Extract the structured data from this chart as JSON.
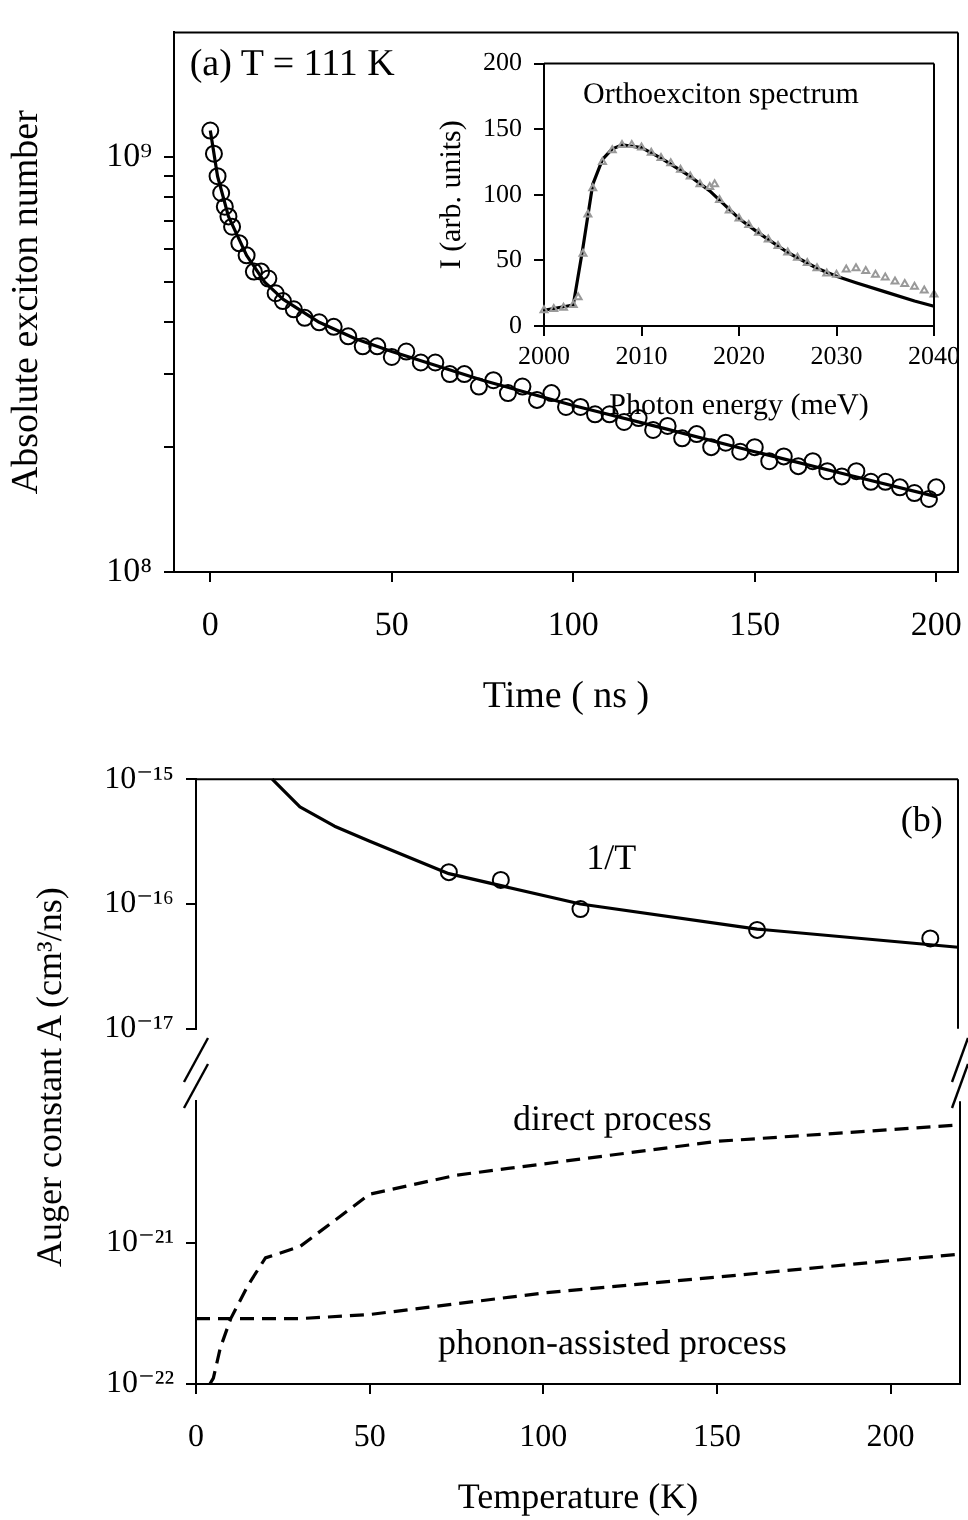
{
  "chart_data": [
    {
      "type": "scatter",
      "xlabel": "Time ( ns )",
      "ylabel": "Absolute exciton number",
      "log": "y",
      "xlim": [
        -10,
        206
      ],
      "xticks": [
        0,
        50,
        100,
        150,
        200
      ],
      "ylim": [
        100000000.0,
        2000000000.0
      ],
      "yticks": [
        {
          "value": 100000000.0,
          "label": "10⁸"
        },
        {
          "value": 200000000.0,
          "label": null
        },
        {
          "value": 300000000.0,
          "label": null
        },
        {
          "value": 400000000.0,
          "label": null
        },
        {
          "value": 500000000.0,
          "label": null
        },
        {
          "value": 600000000.0,
          "label": null
        },
        {
          "value": 700000000.0,
          "label": null
        },
        {
          "value": 800000000.0,
          "label": null
        },
        {
          "value": 900000000.0,
          "label": null
        },
        {
          "value": 1000000000.0,
          "label": "10⁹"
        }
      ],
      "annotations": [
        "(a) T = 111 K"
      ],
      "series": [
        {
          "marker": "circle",
          "color": "#000000",
          "x": [
            0,
            1,
            2,
            3,
            4,
            5,
            6,
            8,
            10,
            12,
            14,
            16,
            18,
            20,
            23,
            26,
            30,
            34,
            38,
            42,
            46,
            50,
            54,
            58,
            62,
            66,
            70,
            74,
            78,
            82,
            86,
            90,
            94,
            98,
            102,
            106,
            110,
            114,
            118,
            122,
            126,
            130,
            134,
            138,
            142,
            146,
            150,
            154,
            158,
            162,
            166,
            170,
            174,
            178,
            182,
            186,
            190,
            194,
            198,
            200
          ],
          "values": [
            1160000000.0,
            1020000000.0,
            900000000.0,
            820000000.0,
            760000000.0,
            720000000.0,
            680000000.0,
            620000000.0,
            580000000.0,
            530000000.0,
            530000000.0,
            510000000.0,
            470000000.0,
            450000000.0,
            430000000.0,
            410000000.0,
            400000000.0,
            390000000.0,
            370000000.0,
            350000000.0,
            350000000.0,
            330000000.0,
            340000000.0,
            320000000.0,
            320000000.0,
            300000000.0,
            300000000.0,
            280000000.0,
            290000000.0,
            270000000.0,
            280000000.0,
            260000000.0,
            270000000.0,
            250000000.0,
            250000000.0,
            240000000.0,
            240000000.0,
            230000000.0,
            235000000.0,
            220000000.0,
            225000000.0,
            210000000.0,
            215000000.0,
            200000000.0,
            205000000.0,
            195000000.0,
            200000000.0,
            185000000.0,
            190000000.0,
            180000000.0,
            185000000.0,
            175000000.0,
            170000000.0,
            175000000.0,
            165000000.0,
            165000000.0,
            160000000.0,
            155000000.0,
            150000000.0,
            160000000.0
          ]
        },
        {
          "type": "line",
          "marker": "none",
          "line_style": "solid",
          "color": "#000000",
          "x": [
            0,
            2,
            5,
            10,
            15,
            20,
            30,
            40,
            50,
            75,
            100,
            125,
            150,
            175,
            200
          ],
          "values": [
            1160000000.0,
            900000000.0,
            720000000.0,
            580000000.0,
            500000000.0,
            455000000.0,
            400000000.0,
            365000000.0,
            340000000.0,
            290000000.0,
            252000000.0,
            222000000.0,
            195000000.0,
            172000000.0,
            152000000.0
          ]
        }
      ]
    },
    {
      "type": "scatter",
      "xlabel": "Photon energy (meV)",
      "ylabel": "I (arb. units)",
      "xlim": [
        2000,
        2040
      ],
      "xticks": [
        2000,
        2010,
        2020,
        2030,
        2040
      ],
      "ylim": [
        0,
        200
      ],
      "yticks": [
        0,
        50,
        100,
        150,
        200
      ],
      "annotations": [
        "Orthoexciton spectrum"
      ],
      "series": [
        {
          "marker": "triangle",
          "color": "#999999",
          "x": [
            2000,
            2001,
            2002,
            2003,
            2003.5,
            2004,
            2004.5,
            2005,
            2006,
            2007,
            2008,
            2009,
            2010,
            2011,
            2012,
            2013,
            2014,
            2015,
            2016,
            2017,
            2017.5,
            2018,
            2019,
            2020,
            2021,
            2022,
            2023,
            2024,
            2025,
            2026,
            2027,
            2028,
            2029,
            2030,
            2031,
            2032,
            2033,
            2034,
            2035,
            2036,
            2037,
            2038,
            2039,
            2040
          ],
          "values": [
            12,
            13,
            14,
            16,
            22,
            55,
            85,
            105,
            125,
            134,
            138,
            138,
            136,
            132,
            128,
            124,
            119,
            114,
            108,
            106,
            108,
            96,
            88,
            82,
            77,
            71,
            66,
            61,
            56,
            52,
            48,
            44,
            40,
            39,
            43,
            44,
            42,
            39,
            37,
            34,
            32,
            30,
            27,
            24
          ]
        },
        {
          "type": "line",
          "marker": "none",
          "line_style": "solid",
          "color": "#000000",
          "x": [
            2000,
            2003,
            2004,
            2005,
            2006,
            2007,
            2008,
            2010,
            2012,
            2015,
            2017,
            2018,
            2020,
            2022,
            2025,
            2028,
            2030,
            2032,
            2035,
            2038,
            2040
          ],
          "values": [
            12,
            16,
            60,
            108,
            127,
            135,
            138,
            136,
            128,
            114,
            103,
            96,
            82,
            71,
            56,
            44,
            38,
            33,
            26,
            19,
            15
          ]
        }
      ]
    },
    {
      "type": "scatter",
      "ylabel": "Auger constant  A (cm³/ns)",
      "log": "y",
      "tick_labels": "y",
      "xlim": [
        0,
        220
      ],
      "ylim": [
        1e-17,
        1e-15
      ],
      "yticks": [
        {
          "value": 1e-17,
          "label": "10⁻¹⁷"
        },
        {
          "value": 1e-16,
          "label": "10⁻¹⁶"
        },
        {
          "value": 1e-15,
          "label": "10⁻¹⁵"
        }
      ],
      "annotations": [
        "(b)",
        "1/T"
      ],
      "series": [
        {
          "marker": "circle",
          "color": "#000000",
          "x": [
            73,
            88,
            111,
            162,
            212
          ],
          "values": [
            1.8e-16,
            1.56e-16,
            9.1e-17,
            6.2e-17,
            5.3e-17
          ]
        },
        {
          "type": "line",
          "marker": "none",
          "line_style": "solid",
          "color": "#000000",
          "x": [
            22,
            30,
            40,
            50,
            73,
            111,
            162,
            220
          ],
          "values": [
            1e-15,
            6e-16,
            4.2e-16,
            3.2e-16,
            1.75e-16,
            1e-16,
            6.3e-17,
            4.5e-17
          ]
        }
      ]
    },
    {
      "type": "line",
      "xlabel": "Temperature (K)",
      "log": "y",
      "xlim": [
        0,
        220
      ],
      "xticks": [
        0,
        50,
        100,
        150,
        200
      ],
      "ylim": [
        1e-22,
        1e-20
      ],
      "yticks": [
        {
          "value": 1e-22,
          "label": "10⁻²²"
        },
        {
          "value": 1e-21,
          "label": "10⁻²¹"
        }
      ],
      "annotations": [
        "direct process",
        "phonon-assisted process"
      ],
      "series": [
        {
          "marker": "none",
          "line_style": "dashed",
          "color": "#000000",
          "x": [
            4,
            5,
            7,
            10,
            15,
            20,
            30,
            50,
            75,
            100,
            150,
            220
          ],
          "values": [
            1e-22,
            1.1e-22,
            1.8e-22,
            2.9e-22,
            5e-22,
            7.8e-22,
            9.4e-22,
            2.2e-21,
            3e-21,
            3.6e-21,
            5.2e-21,
            6.8e-21
          ]
        },
        {
          "marker": "none",
          "line_style": "dashed",
          "color": "#000000",
          "x": [
            0,
            30,
            50,
            100,
            150,
            220
          ],
          "values": [
            2.9e-22,
            2.9e-22,
            3.1e-22,
            4.4e-22,
            5.7e-22,
            8.3e-22
          ]
        }
      ]
    }
  ]
}
